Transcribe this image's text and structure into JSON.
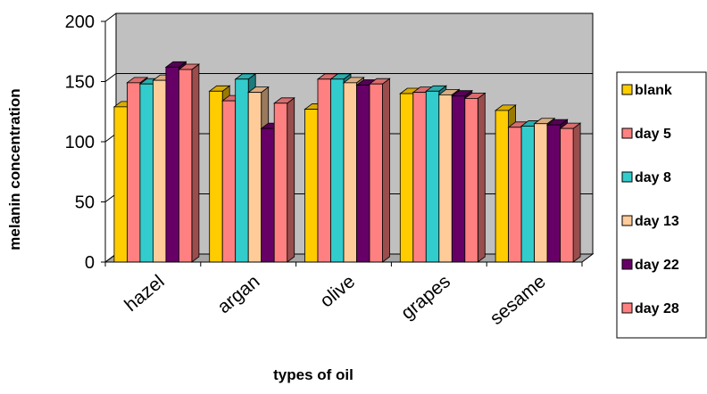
{
  "chart_data": {
    "type": "bar",
    "style": "3d-clustered-column",
    "title": "",
    "xlabel": "types of oil",
    "ylabel": "melanin concentration",
    "ylim": [
      0,
      200
    ],
    "yticks": [
      "0",
      "50",
      "100",
      "150",
      "200"
    ],
    "grid": true,
    "legend_position": "right",
    "categories": [
      "hazel",
      "argan",
      "olive",
      "grapes",
      "sesame"
    ],
    "series": [
      {
        "name": "blank",
        "color": "#FFCC00",
        "values": [
          129,
          142,
          127,
          140,
          126
        ]
      },
      {
        "name": "day 5",
        "color": "#FF8080",
        "values": [
          149,
          134,
          152,
          141,
          112
        ]
      },
      {
        "name": "day 8",
        "color": "#33CCCC",
        "values": [
          148,
          152,
          152,
          142,
          113
        ]
      },
      {
        "name": "day 13",
        "color": "#FFCC99",
        "values": [
          151,
          141,
          149,
          139,
          115
        ]
      },
      {
        "name": "day 22",
        "color": "#660066",
        "values": [
          162,
          111,
          147,
          138,
          114
        ]
      },
      {
        "name": "day 28",
        "color": "#FF8080",
        "values": [
          160,
          132,
          148,
          136,
          111
        ]
      }
    ]
  }
}
